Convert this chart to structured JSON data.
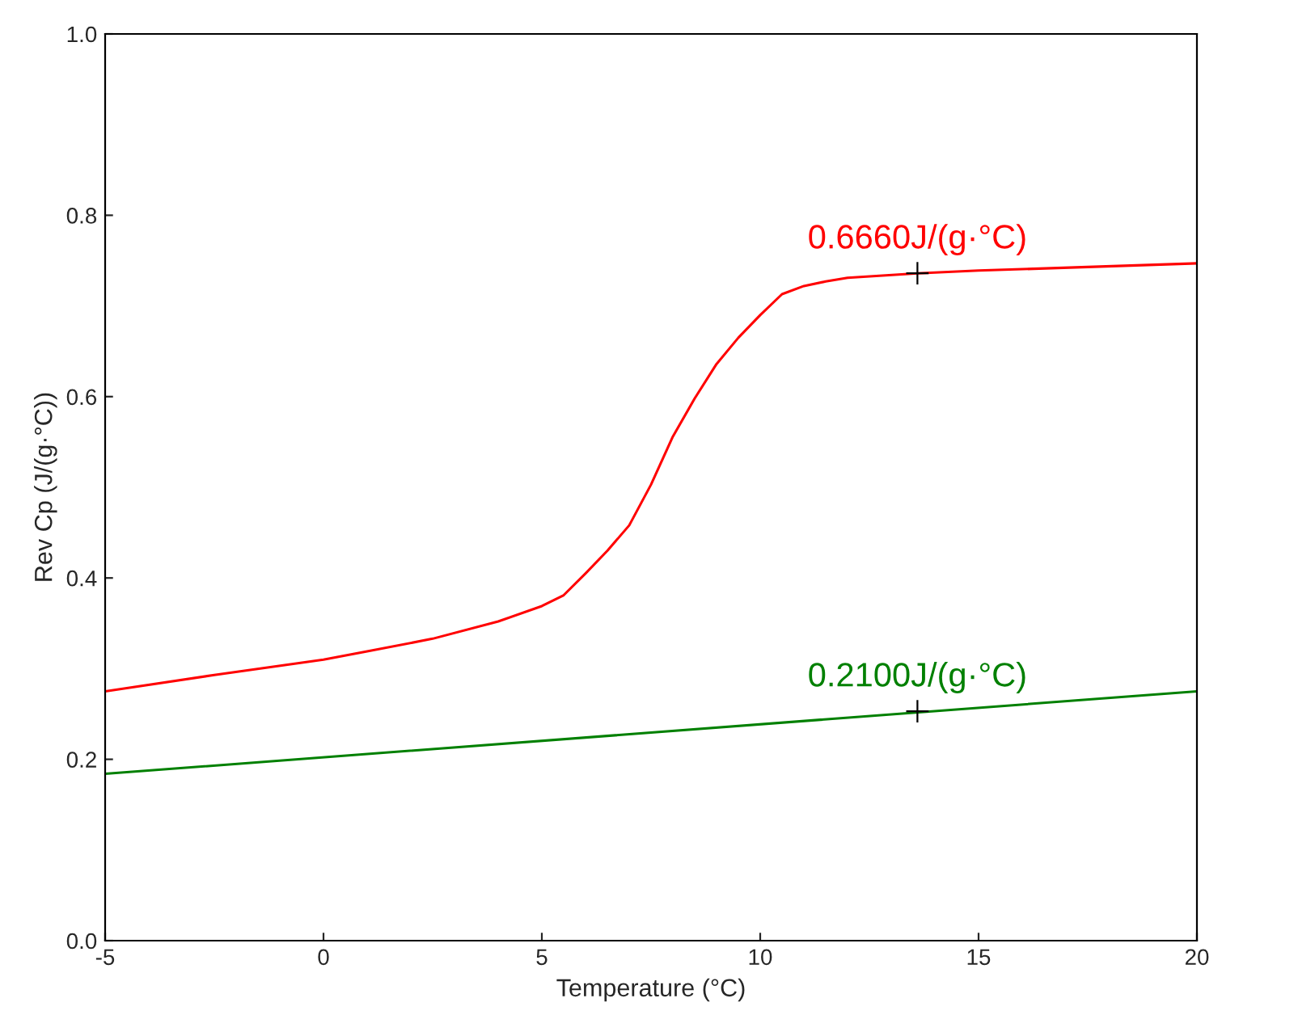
{
  "chart_data": {
    "type": "line",
    "xlabel": "Temperature (°C)",
    "ylabel": "Rev Cp (J/(g·°C))",
    "xlim": [
      -5,
      20
    ],
    "ylim": [
      0,
      1
    ],
    "xticks": [
      -5,
      0,
      5,
      10,
      15,
      20
    ],
    "yticks": [
      {
        "value": 0,
        "label": "0.0"
      },
      0.2,
      0.4,
      0.6,
      0.8,
      {
        "value": 1,
        "label": "1.0"
      }
    ],
    "grid": false,
    "legend": false,
    "marker": "none",
    "line_style": "solid",
    "series": [
      {
        "color": "#ff0000",
        "x": [
          -5,
          -2.5,
          0,
          1,
          2.5,
          4,
          5,
          5.5,
          6,
          6.5,
          7,
          7.5,
          8,
          8.5,
          9,
          9.5,
          10,
          10.5,
          11,
          11.5,
          12,
          13.6,
          15,
          17.5,
          20
        ],
        "values": [
          0.275,
          0.293,
          0.31,
          0.319,
          0.333,
          0.352,
          0.369,
          0.381,
          0.405,
          0.43,
          0.458,
          0.503,
          0.556,
          0.598,
          0.636,
          0.665,
          0.69,
          0.713,
          0.722,
          0.727,
          0.731,
          0.736,
          0.739,
          0.743,
          0.747
        ]
      },
      {
        "color": "#008000",
        "x": [
          -5,
          20
        ],
        "values": [
          0.184,
          0.275
        ]
      }
    ],
    "annotations": [
      {
        "text": "0.6660J/(g·°C)",
        "x": 13.6,
        "y": 0.736
      },
      {
        "text": "0.2100J/(g·°C)",
        "x": 13.6,
        "y": 0.253
      }
    ]
  }
}
